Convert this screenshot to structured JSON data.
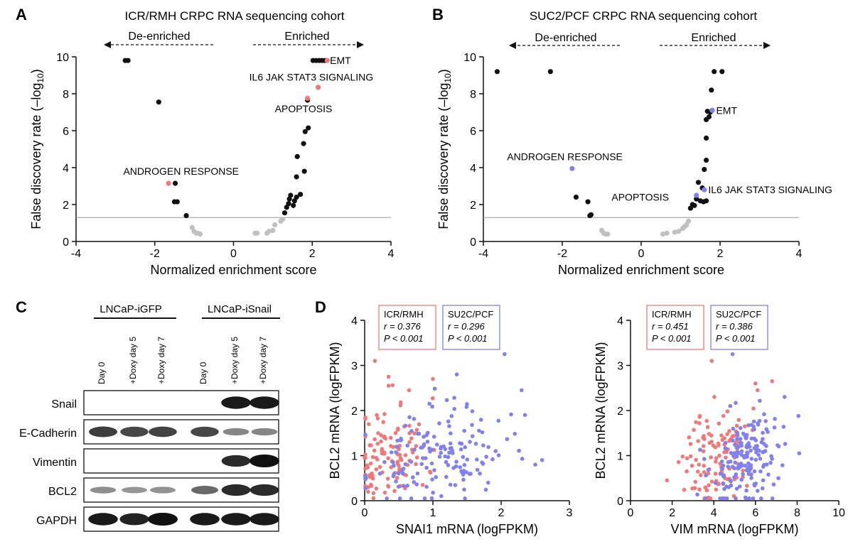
{
  "panel_letters": [
    "A",
    "B",
    "C",
    "D"
  ],
  "colors": {
    "highlight_A": "#f07878",
    "highlight_B": "#8080ee",
    "ns": "#c0c0c0",
    "sig": "#111111",
    "icr": "#f07878",
    "su2c": "#8080ee"
  },
  "panel_A": {
    "title": "ICR/RMH CRPC RNA sequencing cohort",
    "deenriched": "De-enriched",
    "enriched": "Enriched"
  },
  "panel_B": {
    "title": "SUC2/PCF CRPC RNA sequencing cohort",
    "deenriched": "De-enriched",
    "enriched": "Enriched"
  },
  "panel_C": {
    "group_left": "LNCaP-iGFP",
    "group_right": "LNCaP-iSnail",
    "lanes": [
      "Day 0",
      "+Doxy day 5",
      "+Doxy day 7",
      "Day 0",
      "+Doxy day 5",
      "+Doxy day 7"
    ],
    "rows": [
      "Snail",
      "E-Cadherin",
      "Vimentin",
      "BCL2",
      "GAPDH"
    ],
    "band_intensity": [
      [
        0,
        0,
        0,
        0,
        0.95,
        0.95
      ],
      [
        0.75,
        0.7,
        0.72,
        0.7,
        0.35,
        0.35
      ],
      [
        0,
        0,
        0,
        0,
        0.85,
        1.0
      ],
      [
        0.3,
        0.25,
        0.28,
        0.5,
        0.85,
        0.85
      ],
      [
        0.95,
        0.9,
        1.0,
        0.95,
        0.95,
        0.95
      ]
    ]
  },
  "chart_data": [
    {
      "type": "scatter",
      "panel": "A",
      "title": "ICR/RMH CRPC RNA sequencing cohort",
      "xlabel": "Normalized enrichment score",
      "ylabel": "False discovery rate (–log",
      "ylabel_sub": "10",
      "ylabel_end": ")",
      "xlim": [
        -4,
        4
      ],
      "ylim": [
        0,
        10
      ],
      "xticks": [
        -4,
        -2,
        0,
        2,
        4
      ],
      "yticks": [
        0,
        2,
        4,
        6,
        8,
        10
      ],
      "threshold": 1.3,
      "points_sig": [
        [
          -2.75,
          9.8
        ],
        [
          -2.68,
          9.8
        ],
        [
          -1.9,
          7.55
        ],
        [
          -1.48,
          3.15
        ],
        [
          -1.5,
          2.15
        ],
        [
          -1.43,
          2.15
        ],
        [
          -1.2,
          1.4
        ],
        [
          1.3,
          1.55
        ],
        [
          1.35,
          1.85
        ],
        [
          1.4,
          2.05
        ],
        [
          1.42,
          2.3
        ],
        [
          1.45,
          2.5
        ],
        [
          1.52,
          1.95
        ],
        [
          1.55,
          2.2
        ],
        [
          1.6,
          2.4
        ],
        [
          1.7,
          2.55
        ],
        [
          1.6,
          3.5
        ],
        [
          1.62,
          4.6
        ],
        [
          1.8,
          3.8
        ],
        [
          1.78,
          5.3
        ],
        [
          1.82,
          5.95
        ],
        [
          1.9,
          6.15
        ],
        [
          1.88,
          7.65
        ],
        [
          2.02,
          9.8
        ],
        [
          2.1,
          9.8
        ],
        [
          2.18,
          9.8
        ],
        [
          2.25,
          9.8
        ],
        [
          2.32,
          9.8
        ]
      ],
      "points_ns": [
        [
          -1.05,
          0.75
        ],
        [
          -1.0,
          0.55
        ],
        [
          -0.95,
          0.45
        ],
        [
          -0.9,
          0.45
        ],
        [
          -0.85,
          0.4
        ],
        [
          0.55,
          0.45
        ],
        [
          0.6,
          0.45
        ],
        [
          0.85,
          0.45
        ],
        [
          0.9,
          0.55
        ],
        [
          1.0,
          0.6
        ],
        [
          1.05,
          0.9
        ],
        [
          1.2,
          1.1
        ],
        [
          1.25,
          1.2
        ]
      ],
      "points_hi": [
        [
          -1.65,
          3.15
        ],
        [
          1.88,
          7.75
        ],
        [
          2.15,
          8.35
        ],
        [
          2.38,
          9.8
        ]
      ],
      "labels": [
        {
          "text": "EMT",
          "x": 2.45,
          "y": 9.8
        },
        {
          "text": "IL6 JAK STAT3 SIGNALING",
          "x": 0.4,
          "y": 8.9
        },
        {
          "text": "APOPTOSIS",
          "x": 1.05,
          "y": 7.2
        },
        {
          "text": "ANDROGEN RESPONSE",
          "x": -2.8,
          "y": 3.8
        }
      ]
    },
    {
      "type": "scatter",
      "panel": "B",
      "title": "SUC2/PCF CRPC RNA sequencing cohort",
      "xlabel": "Normalized enrichment score",
      "ylabel": "False discovery rate (–log",
      "ylabel_sub": "10",
      "ylabel_end": ")",
      "xlim": [
        -4,
        4
      ],
      "ylim": [
        0,
        10
      ],
      "xticks": [
        -4,
        -2,
        0,
        2,
        4
      ],
      "yticks": [
        0,
        2,
        4,
        6,
        8,
        10
      ],
      "threshold": 1.3,
      "points_sig": [
        [
          -3.65,
          9.2
        ],
        [
          -2.3,
          9.2
        ],
        [
          -1.65,
          2.4
        ],
        [
          -1.35,
          2.15
        ],
        [
          -1.3,
          1.4
        ],
        [
          -1.27,
          1.45
        ],
        [
          1.25,
          1.8
        ],
        [
          1.3,
          2.0
        ],
        [
          1.35,
          1.95
        ],
        [
          1.4,
          2.3
        ],
        [
          1.5,
          2.2
        ],
        [
          1.58,
          2.15
        ],
        [
          1.65,
          2.2
        ],
        [
          1.45,
          3.2
        ],
        [
          1.55,
          2.9
        ],
        [
          1.6,
          3.9
        ],
        [
          1.65,
          4.4
        ],
        [
          1.65,
          5.6
        ],
        [
          1.65,
          6.6
        ],
        [
          1.72,
          6.75
        ],
        [
          1.75,
          7.0
        ],
        [
          1.8,
          7.1
        ],
        [
          1.78,
          8.2
        ],
        [
          1.85,
          9.2
        ],
        [
          2.05,
          9.2
        ],
        [
          1.68,
          7.05
        ]
      ],
      "points_ns": [
        [
          -1.0,
          0.6
        ],
        [
          -0.95,
          0.45
        ],
        [
          -0.9,
          0.4
        ],
        [
          -0.85,
          0.4
        ],
        [
          0.55,
          0.4
        ],
        [
          0.65,
          0.45
        ],
        [
          0.85,
          0.5
        ],
        [
          0.95,
          0.55
        ],
        [
          1.05,
          0.7
        ],
        [
          1.1,
          0.8
        ],
        [
          1.15,
          0.9
        ],
        [
          1.2,
          1.1
        ]
      ],
      "points_hi": [
        [
          -1.75,
          3.95
        ],
        [
          1.8,
          7.1
        ],
        [
          1.4,
          2.5
        ],
        [
          1.6,
          2.8
        ]
      ],
      "labels": [
        {
          "text": "EMT",
          "x": 1.9,
          "y": 7.1
        },
        {
          "text": "ANDROGEN RESPONSE",
          "x": -3.4,
          "y": 4.6
        },
        {
          "text": "IL6 JAK STAT3 SIGNALING",
          "x": 1.7,
          "y": 2.8
        },
        {
          "text": "APOPTOSIS",
          "x": -0.75,
          "y": 2.4
        }
      ]
    },
    {
      "type": "scatter",
      "panel": "D-left",
      "xlabel": "SNAI1 mRNA (logFPKM)",
      "ylabel": "BCL2 mRNA (logFPKM)",
      "xlim": [
        0,
        3
      ],
      "ylim": [
        0,
        4
      ],
      "xticks": [
        0,
        1,
        2,
        3
      ],
      "yticks": [
        0,
        1,
        2,
        3,
        4
      ],
      "legend": [
        {
          "name": "ICR/RMH",
          "r": "r = 0.376",
          "p": "P < 0.001"
        },
        {
          "name": "SU2C/PCF",
          "r": "r = 0.296",
          "p": "P < 0.001"
        }
      ],
      "series": [
        {
          "name": "ICR/RMH",
          "n": 110,
          "seed": 11,
          "xmean": 0.35,
          "xsd": 0.28,
          "ymean": 1.05,
          "ysd": 0.55,
          "fixed": [
            [
              0.15,
              3.1
            ],
            [
              0.35,
              2.75
            ],
            [
              0.35,
              2.55
            ],
            [
              0.65,
              2.45
            ],
            [
              0.0,
              0.95
            ],
            [
              0.05,
              0.3
            ],
            [
              0.05,
              0.2
            ],
            [
              1.0,
              2.7
            ],
            [
              0.85,
              0.35
            ]
          ]
        },
        {
          "name": "SU2C/PCF",
          "n": 150,
          "seed": 23,
          "xmean": 1.05,
          "xsd": 0.5,
          "ymean": 0.95,
          "ysd": 0.5,
          "fixed": [
            [
              2.05,
              3.25
            ],
            [
              1.35,
              2.8
            ],
            [
              2.3,
              2.45
            ],
            [
              2.35,
              1.9
            ],
            [
              2.6,
              0.9
            ],
            [
              2.5,
              0.8
            ],
            [
              0.95,
              2.15
            ]
          ]
        }
      ]
    },
    {
      "type": "scatter",
      "panel": "D-right",
      "xlabel": "VIM mRNA (logFPKM)",
      "ylabel": "BCL2 mRNA (logFPKM)",
      "xlim": [
        0,
        10
      ],
      "ylim": [
        0,
        4
      ],
      "xticks": [
        0,
        2,
        4,
        6,
        8,
        10
      ],
      "yticks": [
        0,
        1,
        2,
        3,
        4
      ],
      "legend": [
        {
          "name": "ICR/RMH",
          "r": "r = 0.451",
          "p": "P < 0.001"
        },
        {
          "name": "SU2C/PCF",
          "r": "r = 0.386",
          "p": "P < 0.001"
        }
      ],
      "series": [
        {
          "name": "ICR/RMH",
          "n": 110,
          "seed": 37,
          "xmean": 4.2,
          "xsd": 0.8,
          "ymean": 1.0,
          "ysd": 0.55,
          "fixed": [
            [
              1.75,
              0.45
            ],
            [
              2.7,
              0.65
            ],
            [
              3.9,
              3.1
            ],
            [
              6.0,
              2.6
            ],
            [
              6.1,
              2.45
            ],
            [
              6.8,
              2.65
            ]
          ]
        },
        {
          "name": "SU2C/PCF",
          "n": 170,
          "seed": 53,
          "xmean": 5.6,
          "xsd": 0.9,
          "ymean": 0.9,
          "ysd": 0.55,
          "fixed": [
            [
              4.9,
              3.25
            ],
            [
              8.1,
              1.05
            ],
            [
              7.4,
              2.3
            ],
            [
              7.1,
              0.5
            ],
            [
              4.3,
              0.05
            ]
          ]
        }
      ]
    }
  ]
}
